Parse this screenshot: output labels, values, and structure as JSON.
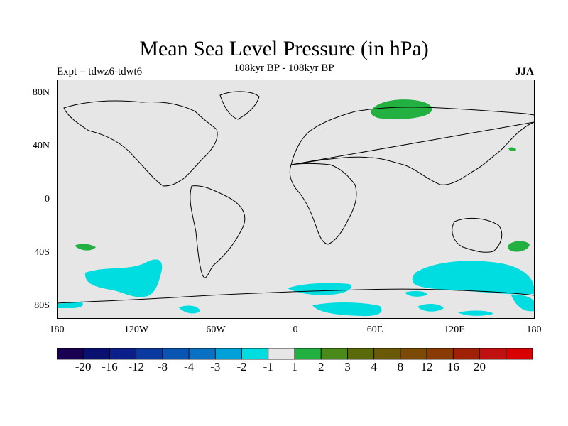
{
  "title": "Mean Sea Level Pressure (in hPa)",
  "subtitle": "108kyr BP - 108kyr BP",
  "experiment": "Expt = tdwz6-tdwt6",
  "season": "JJA",
  "axes": {
    "lat_ticks": [
      "80N",
      "40N",
      "0",
      "40S",
      "80S"
    ],
    "lon_ticks": [
      "180",
      "120W",
      "60W",
      "0",
      "60E",
      "120E",
      "180"
    ]
  },
  "colorbar": {
    "colors": [
      "#1a0050",
      "#0a1070",
      "#0a1f8a",
      "#0a3aa0",
      "#0a55b4",
      "#0a70c4",
      "#00a0d8",
      "#00dde0",
      "#e6e6e6",
      "#22b040",
      "#4a8a1a",
      "#5a6a0a",
      "#6a5a08",
      "#7a4a06",
      "#8a3a04",
      "#a02008",
      "#c01010",
      "#d80000"
    ],
    "labels": [
      "-20",
      "-16",
      "-12",
      "-8",
      "-4",
      "-3",
      "-2",
      "-1",
      "1",
      "2",
      "3",
      "4",
      "8",
      "12",
      "16",
      "20"
    ]
  },
  "colors": {
    "background_field": "#e6e6e6",
    "negative_anomaly": "#00dde0",
    "positive_anomaly": "#22b040"
  }
}
